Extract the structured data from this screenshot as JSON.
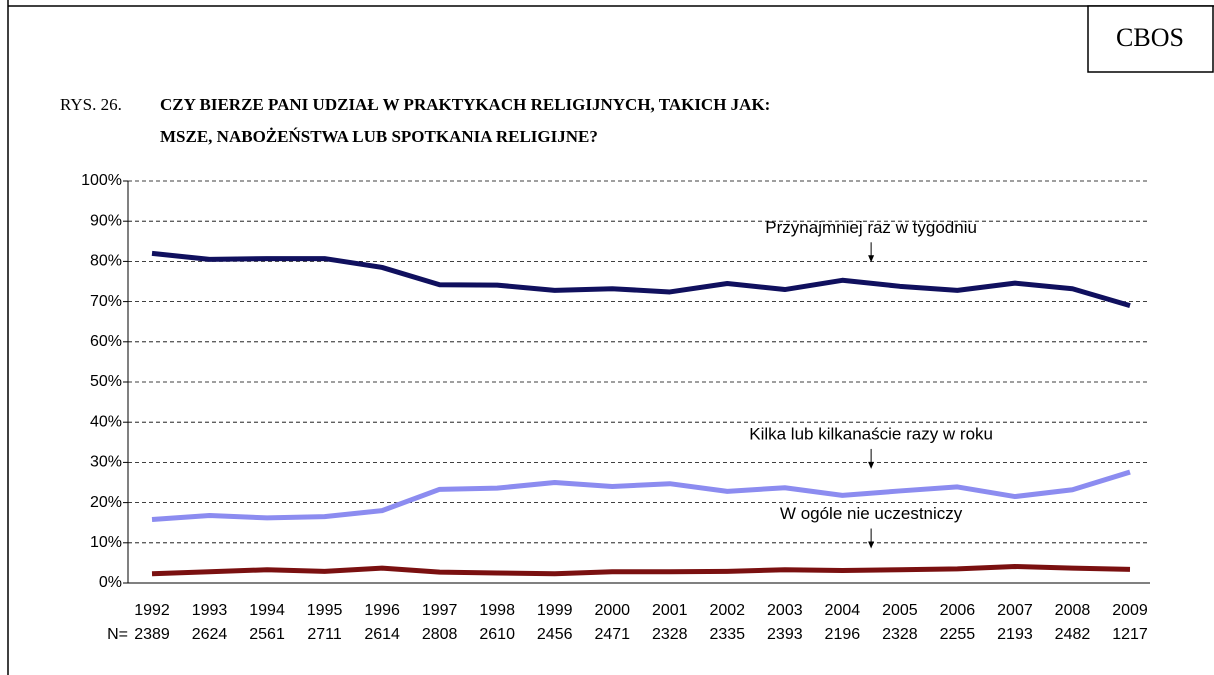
{
  "brand": "CBOS",
  "chart_data": {
    "type": "line",
    "figure_label": "RYS. 26.",
    "title": [
      "CZY BIERZE PANI UDZIAŁ W PRAKTYKACH RELIGIJNYCH, TAKICH JAK:",
      "MSZE, NABOŻEŃSTWA LUB SPOTKANIA RELIGIJNE?"
    ],
    "categories": [
      "1992",
      "1993",
      "1994",
      "1995",
      "1996",
      "1997",
      "1998",
      "1999",
      "2000",
      "2001",
      "2002",
      "2003",
      "2004",
      "2005",
      "2006",
      "2007",
      "2008",
      "2009"
    ],
    "n_label": "N=",
    "n_values": [
      2389,
      2624,
      2561,
      2711,
      2614,
      2808,
      2610,
      2456,
      2471,
      2328,
      2335,
      2393,
      2196,
      2328,
      2255,
      2193,
      2482,
      1217
    ],
    "series": [
      {
        "name": "Przynajmniej raz w tygodniu",
        "color": "#10105e",
        "values": [
          82,
          80.5,
          80.7,
          80.7,
          78.5,
          74.2,
          74.1,
          72.8,
          73.2,
          72.4,
          74.5,
          73,
          75.3,
          73.8,
          72.8,
          74.6,
          73.2,
          69
        ]
      },
      {
        "name": "Kilka lub kilkanaście razy w roku",
        "color": "#8c8cf0",
        "values": [
          15.8,
          16.8,
          16.2,
          16.5,
          18,
          23.3,
          23.6,
          25,
          24,
          24.7,
          22.8,
          23.7,
          21.8,
          22.9,
          23.9,
          21.5,
          23.2,
          27.6
        ]
      },
      {
        "name": "W ogóle nie uczestniczy",
        "color": "#7a1010",
        "values": [
          2.3,
          2.8,
          3.3,
          2.9,
          3.7,
          2.7,
          2.5,
          2.3,
          2.8,
          2.8,
          2.9,
          3.3,
          3.1,
          3.3,
          3.5,
          4.1,
          3.7,
          3.4
        ]
      }
    ],
    "ylim": [
      0,
      100
    ],
    "yticks": [
      {
        "value": 0,
        "label": "0%"
      },
      {
        "value": 10,
        "label": "10%"
      },
      {
        "value": 20,
        "label": "20%"
      },
      {
        "value": 30,
        "label": "30%"
      },
      {
        "value": 40,
        "label": "40%"
      },
      {
        "value": 50,
        "label": "50%"
      },
      {
        "value": 60,
        "label": "60%"
      },
      {
        "value": 70,
        "label": "70%"
      },
      {
        "value": 80,
        "label": "80%"
      },
      {
        "value": 90,
        "label": "90%"
      },
      {
        "value": 100,
        "label": "100%"
      }
    ],
    "grid": true
  }
}
